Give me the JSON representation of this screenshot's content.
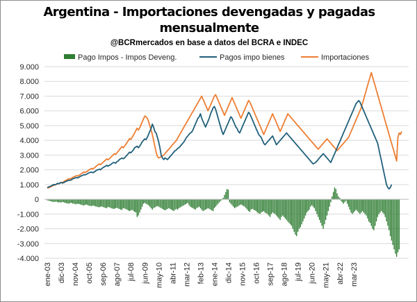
{
  "title_line1": "Argentina - Importaciones devengadas y pagadas",
  "title_line2": "mensualmente",
  "subtitle": "@BCRmercados en base a datos del BCRA e INDEC",
  "colors": {
    "pagos": "#1f5f7a",
    "importaciones": "#ed7d31",
    "diferencia": "#2e7d32",
    "grid": "#d9d9d9"
  },
  "chart_data": {
    "type": "line",
    "grid": true,
    "legend_position": "top",
    "ylim": [
      -4000,
      9000
    ],
    "y_ticks": [
      -4000,
      -3000,
      -2000,
      -1000,
      0,
      1000,
      2000,
      3000,
      4000,
      5000,
      6000,
      7000,
      8000,
      9000
    ],
    "y_tick_labels": [
      "-4.000",
      "-3.000",
      "-2.000",
      "-1.000",
      "0",
      "1.000",
      "2.000",
      "3.000",
      "4.000",
      "5.000",
      "6.000",
      "7.000",
      "8.000",
      "9.000"
    ],
    "x_tick_labels": [
      "ene-03",
      "dic-03",
      "nov-04",
      "oct-05",
      "sep-06",
      "ago-07",
      "jul-08",
      "jun-09",
      "may-10",
      "abr-11",
      "mar-12",
      "feb-13",
      "ene-14",
      "dic-14",
      "nov-15",
      "oct-16",
      "sep-17",
      "ago-18",
      "jul-19",
      "jun-20",
      "may-21",
      "abr-22",
      "mar-23"
    ],
    "x_start": "ene-03",
    "x_step_months": 1,
    "series": [
      {
        "name": "Pago Impos - Impos Deveng.",
        "type": "bar",
        "values": [
          -70,
          -90,
          -110,
          -140,
          -160,
          -180,
          -170,
          -150,
          -190,
          -210,
          -200,
          -220,
          -180,
          -200,
          -240,
          -260,
          -280,
          -300,
          -260,
          -240,
          -280,
          -300,
          -320,
          -340,
          -300,
          -320,
          -340,
          -380,
          -400,
          -420,
          -380,
          -350,
          -400,
          -430,
          -450,
          -460,
          -420,
          -440,
          -480,
          -500,
          -520,
          -540,
          -500,
          -480,
          -520,
          -560,
          -580,
          -600,
          -520,
          -540,
          -580,
          -620,
          -640,
          -650,
          -600,
          -580,
          -620,
          -660,
          -700,
          -720,
          -600,
          -620,
          -660,
          -700,
          -750,
          -800,
          -760,
          -720,
          -780,
          -850,
          -900,
          -1200,
          -1100,
          -900,
          -700,
          -500,
          -300,
          -250,
          -300,
          -350,
          -400,
          -500,
          -600,
          -700,
          -600,
          -550,
          -500,
          -450,
          -500,
          -550,
          -600,
          -650,
          -700,
          -750,
          -700,
          -650,
          -600,
          -650,
          -700,
          -750,
          -800,
          -700,
          -650,
          -700,
          -600,
          -550,
          -500,
          -450,
          -400,
          -350,
          -300,
          -250,
          -400,
          -500,
          -550,
          -600,
          -650,
          -700,
          -600,
          -550,
          -500,
          -600,
          -700,
          -800,
          -750,
          -700,
          -650,
          -600,
          -650,
          -700,
          -750,
          -800,
          -600,
          -500,
          -400,
          -300,
          -200,
          -100,
          -50,
          100,
          300,
          500,
          700,
          650,
          -200,
          -300,
          -400,
          -500,
          -600,
          -550,
          -500,
          -450,
          -400,
          -350,
          -400,
          -450,
          -500,
          -600,
          -700,
          -800,
          -850,
          -700,
          -650,
          -700,
          -750,
          -800,
          -900,
          -950,
          -1000,
          -900,
          -850,
          -800,
          -900,
          -950,
          -1000,
          -1100,
          -1200,
          -1000,
          -900,
          -950,
          -1000,
          -1100,
          -1200,
          -1300,
          -1400,
          -1200,
          -1100,
          -1200,
          -1300,
          -1400,
          -1500,
          -1600,
          -1700,
          -1800,
          -2000,
          -2200,
          -2400,
          -2500,
          -2200,
          -2000,
          -1900,
          -1700,
          -1500,
          -1300,
          -1100,
          -900,
          -800,
          -700,
          -500,
          -400,
          -500,
          -600,
          -800,
          -1000,
          -1200,
          -1400,
          -1600,
          -1800,
          -2000,
          -1700,
          -1400,
          -1100,
          -800,
          -500,
          -200,
          200,
          500,
          800,
          700,
          400,
          200,
          100,
          -100,
          -200,
          -300,
          -200,
          -100,
          -300,
          -500,
          -700,
          -900,
          -1000,
          -900,
          -800,
          -700,
          -800,
          -900,
          -1000,
          -900,
          -800,
          -900,
          -1000,
          -1100,
          -1300,
          -1500,
          -1600,
          -1800,
          -2000,
          -2100,
          -1800,
          -1500,
          -1200,
          -1000,
          -900,
          -800,
          -900,
          -1000,
          -1200,
          -1500,
          -1800,
          -2100,
          -2500,
          -2800,
          -3100,
          -3400,
          -3700,
          -3900,
          -3600,
          -3400
        ]
      },
      {
        "name": "Pagos impo bienes",
        "type": "line",
        "values": [
          800,
          830,
          870,
          900,
          950,
          1000,
          980,
          1020,
          1080,
          1050,
          1100,
          1150,
          1100,
          1130,
          1180,
          1220,
          1250,
          1300,
          1280,
          1320,
          1380,
          1420,
          1450,
          1480,
          1450,
          1500,
          1550,
          1600,
          1620,
          1680,
          1650,
          1700,
          1750,
          1800,
          1820,
          1850,
          1800,
          1850,
          1900,
          1980,
          2000,
          2050,
          2000,
          2080,
          2150,
          2200,
          2250,
          2300,
          2250,
          2300,
          2350,
          2420,
          2480,
          2500,
          2450,
          2550,
          2600,
          2700,
          2750,
          2800,
          2750,
          2800,
          2900,
          3000,
          3100,
          3200,
          3150,
          3250,
          3350,
          3500,
          3550,
          3600,
          3500,
          3600,
          3750,
          3900,
          4000,
          4100,
          4050,
          4200,
          4400,
          4600,
          4800,
          5100,
          4900,
          4600,
          4500,
          4200,
          3900,
          3500,
          3000,
          2800,
          2700,
          2800,
          2750,
          2700,
          2800,
          2900,
          3000,
          3100,
          3200,
          3300,
          3350,
          3450,
          3500,
          3600,
          3700,
          3800,
          3900,
          4050,
          4200,
          4300,
          4400,
          4500,
          4550,
          4700,
          4900,
          5100,
          5300,
          5500,
          5600,
          5800,
          5500,
          5300,
          5100,
          4900,
          5100,
          5300,
          5500,
          5800,
          6000,
          6200,
          6300,
          6100,
          5800,
          5500,
          5200,
          4900,
          4600,
          4400,
          4600,
          4800,
          5000,
          5200,
          5400,
          5600,
          5500,
          5300,
          5100,
          4900,
          4800,
          4600,
          4500,
          4700,
          4900,
          5100,
          5300,
          5500,
          5700,
          5900,
          5800,
          5600,
          5400,
          5200,
          5000,
          4800,
          4600,
          4400,
          4300,
          4200,
          4000,
          3800,
          3700,
          3800,
          3900,
          4000,
          4100,
          4200,
          4300,
          4100,
          3900,
          3700,
          3800,
          3900,
          4000,
          4100,
          4200,
          4300,
          4400,
          4500,
          4400,
          4300,
          4200,
          4100,
          4000,
          3900,
          3800,
          3700,
          3600,
          3500,
          3400,
          3300,
          3200,
          3100,
          3000,
          2900,
          2800,
          2700,
          2600,
          2500,
          2400,
          2450,
          2500,
          2600,
          2700,
          2800,
          2900,
          3000,
          3100,
          3000,
          2900,
          2800,
          2700,
          2600,
          2500,
          2700,
          2900,
          3100,
          3300,
          3500,
          3700,
          3900,
          4100,
          4300,
          4500,
          4700,
          4900,
          5100,
          5300,
          5500,
          5700,
          5900,
          6100,
          6300,
          6500,
          6600,
          6700,
          6600,
          6400,
          6200,
          6000,
          5800,
          5600,
          5400,
          5200,
          5000,
          4800,
          4600,
          4400,
          4200,
          4000,
          3800,
          3400,
          3000,
          2600,
          2200,
          1800,
          1400,
          1000,
          800,
          700,
          800,
          1000
        ]
      },
      {
        "name": "Importaciones",
        "type": "line",
        "values": [
          750,
          780,
          820,
          860,
          900,
          950,
          970,
          1000,
          1050,
          1070,
          1100,
          1120,
          1150,
          1200,
          1250,
          1300,
          1350,
          1400,
          1380,
          1420,
          1480,
          1520,
          1560,
          1600,
          1580,
          1620,
          1680,
          1740,
          1800,
          1860,
          1820,
          1870,
          1930,
          1990,
          2050,
          2100,
          2060,
          2120,
          2190,
          2270,
          2340,
          2400,
          2350,
          2420,
          2500,
          2580,
          2660,
          2740,
          2680,
          2750,
          2830,
          2920,
          3010,
          3100,
          3050,
          3150,
          3250,
          3360,
          3470,
          3580,
          3500,
          3600,
          3720,
          3850,
          3980,
          4120,
          4060,
          4200,
          4340,
          4500,
          4660,
          4820,
          4700,
          4850,
          5050,
          5250,
          5450,
          5650,
          5600,
          5500,
          5300,
          5000,
          4700,
          4400,
          4000,
          3600,
          3200,
          2900,
          2800,
          2850,
          2900,
          2950,
          3000,
          3100,
          3200,
          3300,
          3400,
          3500,
          3600,
          3700,
          3800,
          3900,
          4000,
          4150,
          4300,
          4450,
          4600,
          4750,
          4900,
          5050,
          5200,
          5350,
          5500,
          5650,
          5800,
          5950,
          6100,
          6250,
          6400,
          6550,
          6700,
          6850,
          7000,
          6800,
          6600,
          6400,
          6200,
          6000,
          6200,
          6400,
          6600,
          6800,
          7000,
          7100,
          6900,
          6700,
          6500,
          6300,
          6100,
          5900,
          5700,
          5900,
          6100,
          6300,
          6500,
          6700,
          6900,
          6700,
          6500,
          6300,
          6100,
          5900,
          5700,
          5500,
          5700,
          5900,
          6100,
          6300,
          6500,
          6700,
          6600,
          6400,
          6200,
          6000,
          5800,
          5600,
          5400,
          5200,
          5000,
          4800,
          4600,
          4400,
          4600,
          4800,
          5000,
          5200,
          5400,
          5600,
          5800,
          5600,
          5400,
          5200,
          5000,
          4800,
          4600,
          4800,
          5000,
          5200,
          5400,
          5600,
          5800,
          5700,
          5600,
          5500,
          5400,
          5300,
          5200,
          5100,
          5000,
          4900,
          4800,
          4700,
          4600,
          4500,
          4400,
          4300,
          4200,
          4100,
          4000,
          3900,
          3800,
          3700,
          3600,
          3500,
          3400,
          3500,
          3600,
          3700,
          3800,
          3900,
          4000,
          4100,
          4000,
          3900,
          3800,
          3700,
          3600,
          3500,
          3400,
          3300,
          3400,
          3500,
          3600,
          3700,
          3800,
          3900,
          4000,
          4100,
          4200,
          4400,
          4600,
          4800,
          5000,
          5200,
          5400,
          5600,
          5800,
          6000,
          6200,
          6500,
          6800,
          7100,
          7400,
          7700,
          8000,
          8300,
          8600,
          8300,
          8000,
          7700,
          7400,
          7100,
          6800,
          6500,
          6200,
          5900,
          5600,
          5300,
          5000,
          4700,
          4400,
          4100,
          3800,
          3500,
          3200,
          2900,
          2600,
          4200,
          4500,
          4400,
          4600
        ]
      }
    ]
  }
}
